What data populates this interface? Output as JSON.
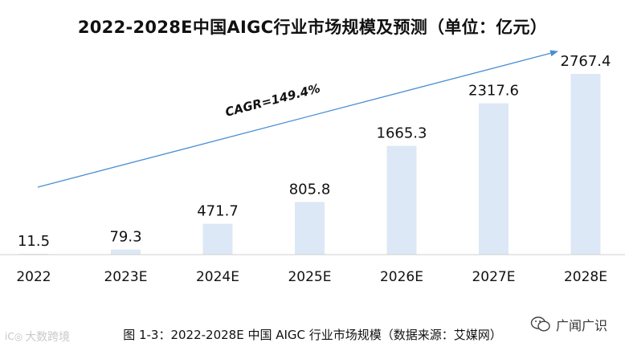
{
  "title": "2022-2028E中国AIGC行业市场规模及预测（单位：亿元）",
  "caption": "图 1-3：2022-2028E 中国 AIGC 行业市场规模（数据来源：艾媒网）",
  "watermark_left": "大数跨境",
  "watermark_right": "广闻广识",
  "colors": {
    "bar": "#dce8f5",
    "trend_arrow": "#4a8fd1",
    "axis": "#cfcfcf"
  },
  "chart_data": {
    "type": "bar",
    "title": "2022-2028E中国AIGC行业市场规模及预测（单位：亿元）",
    "categories": [
      "2022",
      "2023E",
      "2024E",
      "2025E",
      "2026E",
      "2027E",
      "2028E"
    ],
    "values": [
      11.5,
      79.3,
      471.7,
      805.8,
      1665.3,
      2317.6,
      2767.4
    ],
    "value_labels": [
      "11.5",
      "79.3",
      "471.7",
      "805.8",
      "1665.3",
      "2317.6",
      "2767.4"
    ],
    "ylim": [
      0,
      2767.4
    ],
    "grid": false,
    "annotation": "CAGR=149.4%"
  }
}
